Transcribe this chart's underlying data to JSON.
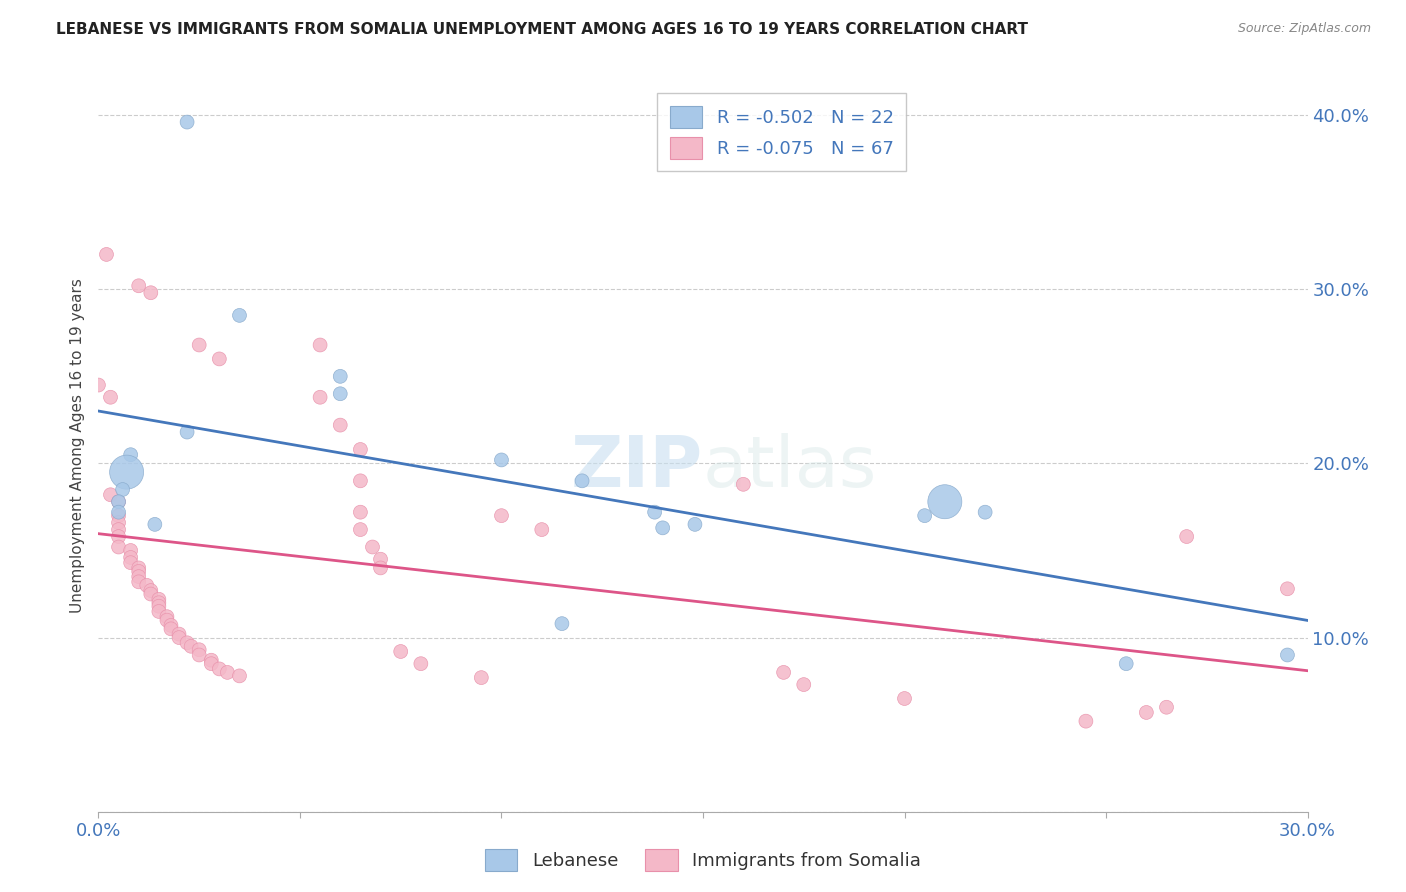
{
  "title": "LEBANESE VS IMMIGRANTS FROM SOMALIA UNEMPLOYMENT AMONG AGES 16 TO 19 YEARS CORRELATION CHART",
  "source": "Source: ZipAtlas.com",
  "ylabel": "Unemployment Among Ages 16 to 19 years",
  "xlim": [
    0.0,
    0.3
  ],
  "ylim": [
    0.0,
    0.42
  ],
  "xticks": [
    0.0,
    0.05,
    0.1,
    0.15,
    0.2,
    0.25,
    0.3
  ],
  "yticks": [
    0.0,
    0.1,
    0.2,
    0.3,
    0.4
  ],
  "watermark": "ZIPatlas",
  "legend_r1": "R = -0.502",
  "legend_n1": "N = 22",
  "legend_r2": "R = -0.075",
  "legend_n2": "N = 67",
  "blue_color": "#a8c8e8",
  "pink_color": "#f4b8c8",
  "blue_line_color": "#4477bb",
  "pink_line_color": "#dd5588",
  "axis_tick_color": "#4477bb",
  "grid_color": "#cccccc",
  "blue_scatter": [
    [
      0.022,
      0.396
    ],
    [
      0.035,
      0.285
    ],
    [
      0.06,
      0.25
    ],
    [
      0.06,
      0.24
    ],
    [
      0.022,
      0.218
    ],
    [
      0.008,
      0.205
    ],
    [
      0.007,
      0.195
    ],
    [
      0.006,
      0.185
    ],
    [
      0.005,
      0.178
    ],
    [
      0.005,
      0.172
    ],
    [
      0.014,
      0.165
    ],
    [
      0.1,
      0.202
    ],
    [
      0.12,
      0.19
    ],
    [
      0.138,
      0.172
    ],
    [
      0.14,
      0.163
    ],
    [
      0.148,
      0.165
    ],
    [
      0.115,
      0.108
    ],
    [
      0.205,
      0.17
    ],
    [
      0.21,
      0.178
    ],
    [
      0.22,
      0.172
    ],
    [
      0.255,
      0.085
    ],
    [
      0.295,
      0.09
    ]
  ],
  "blue_sizes": [
    100,
    100,
    100,
    100,
    100,
    100,
    600,
    100,
    100,
    100,
    100,
    100,
    100,
    100,
    100,
    100,
    100,
    100,
    600,
    100,
    100,
    100
  ],
  "pink_scatter": [
    [
      0.002,
      0.32
    ],
    [
      0.01,
      0.302
    ],
    [
      0.013,
      0.298
    ],
    [
      0.025,
      0.268
    ],
    [
      0.03,
      0.26
    ],
    [
      0.0,
      0.245
    ],
    [
      0.003,
      0.238
    ],
    [
      0.003,
      0.182
    ],
    [
      0.005,
      0.178
    ],
    [
      0.005,
      0.17
    ],
    [
      0.005,
      0.166
    ],
    [
      0.005,
      0.162
    ],
    [
      0.005,
      0.158
    ],
    [
      0.005,
      0.152
    ],
    [
      0.008,
      0.15
    ],
    [
      0.008,
      0.146
    ],
    [
      0.008,
      0.143
    ],
    [
      0.01,
      0.14
    ],
    [
      0.01,
      0.138
    ],
    [
      0.01,
      0.135
    ],
    [
      0.01,
      0.132
    ],
    [
      0.012,
      0.13
    ],
    [
      0.013,
      0.127
    ],
    [
      0.013,
      0.125
    ],
    [
      0.015,
      0.122
    ],
    [
      0.015,
      0.12
    ],
    [
      0.015,
      0.118
    ],
    [
      0.015,
      0.115
    ],
    [
      0.017,
      0.112
    ],
    [
      0.017,
      0.11
    ],
    [
      0.018,
      0.107
    ],
    [
      0.018,
      0.105
    ],
    [
      0.02,
      0.102
    ],
    [
      0.02,
      0.1
    ],
    [
      0.022,
      0.097
    ],
    [
      0.023,
      0.095
    ],
    [
      0.025,
      0.093
    ],
    [
      0.025,
      0.09
    ],
    [
      0.028,
      0.087
    ],
    [
      0.028,
      0.085
    ],
    [
      0.03,
      0.082
    ],
    [
      0.032,
      0.08
    ],
    [
      0.035,
      0.078
    ],
    [
      0.055,
      0.268
    ],
    [
      0.055,
      0.238
    ],
    [
      0.06,
      0.222
    ],
    [
      0.065,
      0.208
    ],
    [
      0.065,
      0.19
    ],
    [
      0.065,
      0.172
    ],
    [
      0.065,
      0.162
    ],
    [
      0.068,
      0.152
    ],
    [
      0.07,
      0.145
    ],
    [
      0.07,
      0.14
    ],
    [
      0.075,
      0.092
    ],
    [
      0.08,
      0.085
    ],
    [
      0.095,
      0.077
    ],
    [
      0.1,
      0.17
    ],
    [
      0.11,
      0.162
    ],
    [
      0.16,
      0.188
    ],
    [
      0.17,
      0.08
    ],
    [
      0.175,
      0.073
    ],
    [
      0.2,
      0.065
    ],
    [
      0.245,
      0.052
    ],
    [
      0.26,
      0.057
    ],
    [
      0.265,
      0.06
    ],
    [
      0.27,
      0.158
    ],
    [
      0.295,
      0.128
    ]
  ],
  "pink_sizes": [
    100,
    100,
    100,
    100,
    100,
    100,
    100,
    100,
    100,
    100,
    100,
    100,
    100,
    100,
    100,
    100,
    100,
    100,
    100,
    100,
    100,
    100,
    100,
    100,
    100,
    100,
    100,
    100,
    100,
    100,
    100,
    100,
    100,
    100,
    100,
    100,
    100,
    100,
    100,
    100,
    100,
    100,
    100,
    100,
    100,
    100,
    100,
    100,
    100,
    100,
    100,
    100,
    100,
    100,
    100,
    100,
    100,
    100,
    100,
    100,
    100,
    100,
    100,
    100,
    100,
    100,
    100
  ]
}
